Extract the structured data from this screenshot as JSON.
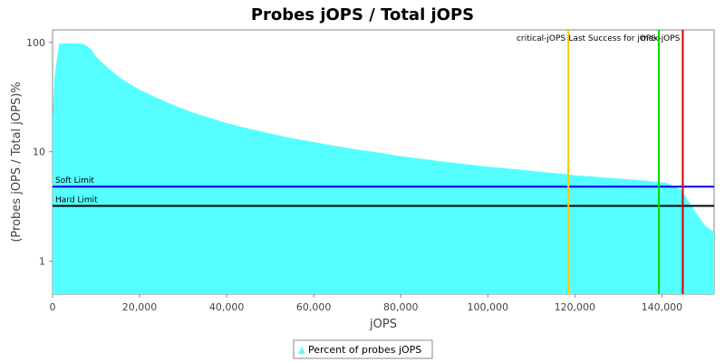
{
  "chart_data": {
    "type": "area",
    "title": "Probes jOPS / Total jOPS",
    "xlabel": "jOPS",
    "ylabel": "(Probes jOPS / Total jOPS)%",
    "xlim": [
      0,
      152000
    ],
    "ylim": [
      0.5,
      130
    ],
    "y_scale": "log",
    "grid": false,
    "legend_position": "bottom-center",
    "x_ticks": [
      {
        "value": 0,
        "label": "0"
      },
      {
        "value": 20000,
        "label": "20,000"
      },
      {
        "value": 40000,
        "label": "40,000"
      },
      {
        "value": 60000,
        "label": "60,000"
      },
      {
        "value": 80000,
        "label": "80,000"
      },
      {
        "value": 100000,
        "label": "100,000"
      },
      {
        "value": 120000,
        "label": "120,000"
      },
      {
        "value": 140000,
        "label": "140,000"
      }
    ],
    "y_ticks": [
      {
        "value": 1,
        "label": "1"
      },
      {
        "value": 10,
        "label": "10"
      },
      {
        "value": 100,
        "label": "100"
      }
    ],
    "series": [
      {
        "name": "Percent of probes jOPS",
        "color": "#55ffff",
        "x": [
          0,
          500,
          1500,
          3000,
          5000,
          7000,
          8000,
          9000,
          10000,
          12000,
          14000,
          16000,
          18000,
          20000,
          24000,
          28000,
          32000,
          36000,
          40000,
          45000,
          50000,
          55000,
          60000,
          65000,
          70000,
          75000,
          80000,
          85000,
          90000,
          95000,
          100000,
          105000,
          110000,
          115000,
          118500,
          120000,
          125000,
          130000,
          135000,
          139000,
          141000,
          143000,
          144500,
          146000,
          148000,
          150000,
          152000
        ],
        "y": [
          20,
          50,
          97,
          98,
          98,
          97,
          92,
          85,
          74,
          62,
          53,
          46,
          41,
          37,
          31,
          26.5,
          23,
          20.5,
          18.3,
          16.3,
          14.7,
          13.3,
          12.3,
          11.3,
          10.5,
          9.8,
          9.1,
          8.6,
          8.1,
          7.7,
          7.3,
          7.0,
          6.7,
          6.4,
          6.2,
          6.1,
          5.9,
          5.7,
          5.5,
          5.3,
          5.2,
          4.8,
          4.5,
          3.6,
          2.7,
          2.1,
          1.85
        ]
      }
    ],
    "reference_lines": {
      "vertical": [
        {
          "name": "critical-jOPS",
          "x": 118500,
          "color": "#ffc800"
        },
        {
          "name": "Last Success for jOPS",
          "x": 139300,
          "color": "#00dd00"
        },
        {
          "name": "max-jOPS",
          "x": 144800,
          "color": "#cc0000"
        }
      ],
      "horizontal": [
        {
          "name": "Soft Limit",
          "y": 4.8,
          "color": "#0000ee"
        },
        {
          "name": "Hard Limit",
          "y": 3.2,
          "color": "#000000"
        }
      ]
    }
  }
}
